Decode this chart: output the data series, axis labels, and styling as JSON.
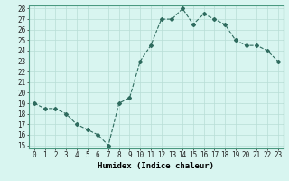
{
  "x": [
    0,
    1,
    2,
    3,
    4,
    5,
    6,
    7,
    8,
    9,
    10,
    11,
    12,
    13,
    14,
    15,
    16,
    17,
    18,
    19,
    20,
    21,
    22,
    23
  ],
  "y": [
    19,
    18.5,
    18.5,
    18,
    17,
    16.5,
    16,
    15,
    19,
    19.5,
    23,
    24.5,
    27,
    27,
    28,
    26.5,
    27.5,
    27,
    26.5,
    25,
    24.5,
    24.5,
    24,
    23
  ],
  "line_color": "#2e6b5e",
  "marker": "D",
  "marker_size": 2.0,
  "bg_color": "#d8f5f0",
  "grid_color": "#b8ddd6",
  "xlabel": "Humidex (Indice chaleur)",
  "ylim_min": 15,
  "ylim_max": 28,
  "yticks": [
    15,
    16,
    17,
    18,
    19,
    20,
    21,
    22,
    23,
    24,
    25,
    26,
    27,
    28
  ],
  "xtick_labels": [
    "0",
    "1",
    "2",
    "3",
    "4",
    "5",
    "6",
    "7",
    "8",
    "9",
    "10",
    "11",
    "12",
    "13",
    "14",
    "15",
    "16",
    "17",
    "18",
    "19",
    "20",
    "21",
    "22",
    "23"
  ],
  "tick_fontsize": 5.5,
  "label_fontsize": 6.5
}
